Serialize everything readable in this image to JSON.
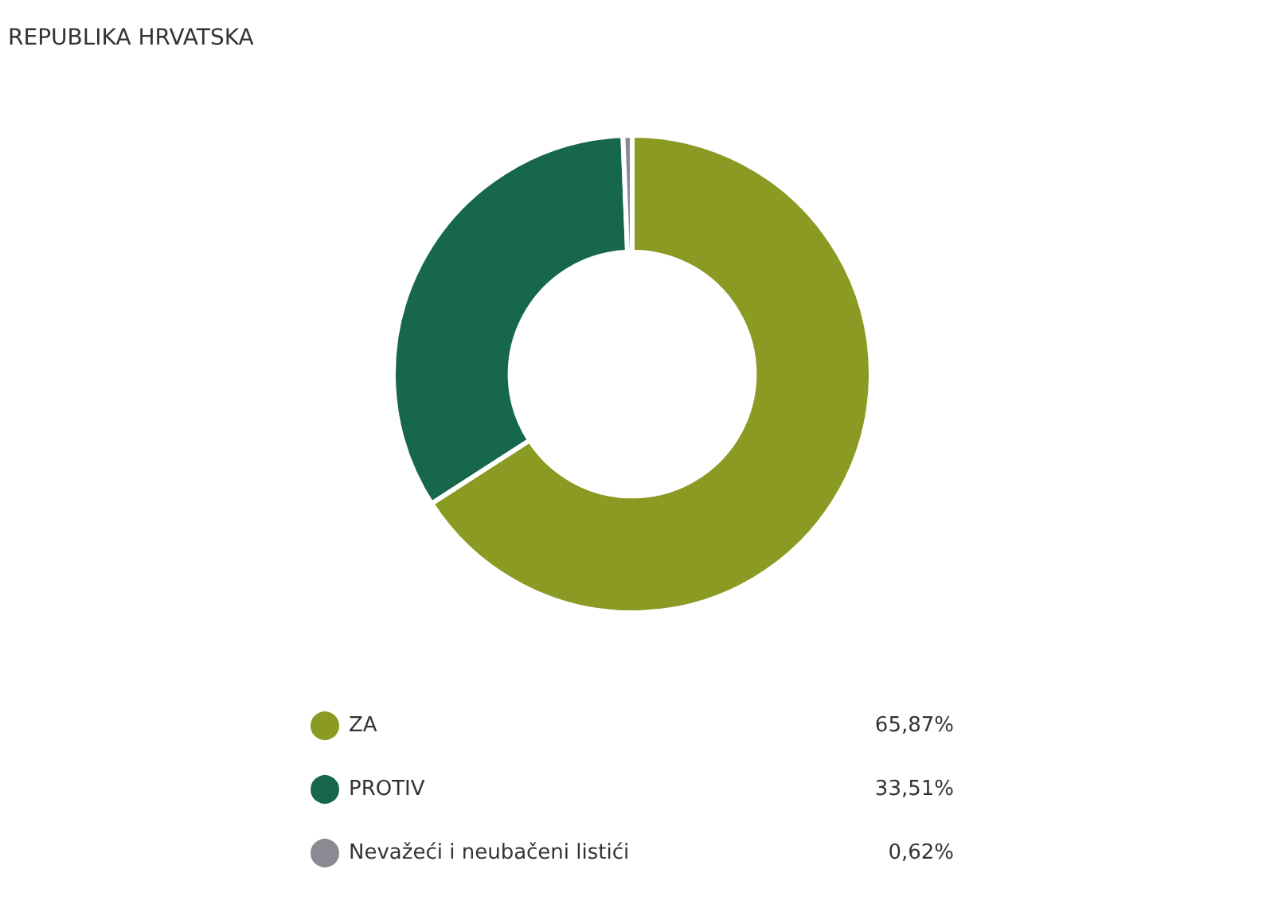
{
  "chart_data": {
    "type": "donut",
    "title": "REPUBLIKA HRVATSKA",
    "categories": [
      "ZA",
      "PROTIV",
      "Nevažeći i neubačeni listići"
    ],
    "values": [
      65.87,
      33.51,
      0.62
    ],
    "colors": [
      "#8a9a22",
      "#16674c",
      "#8a8a92"
    ],
    "value_labels": [
      "65,87%",
      "33,51%",
      "0,62%"
    ],
    "legend": "bottom"
  }
}
